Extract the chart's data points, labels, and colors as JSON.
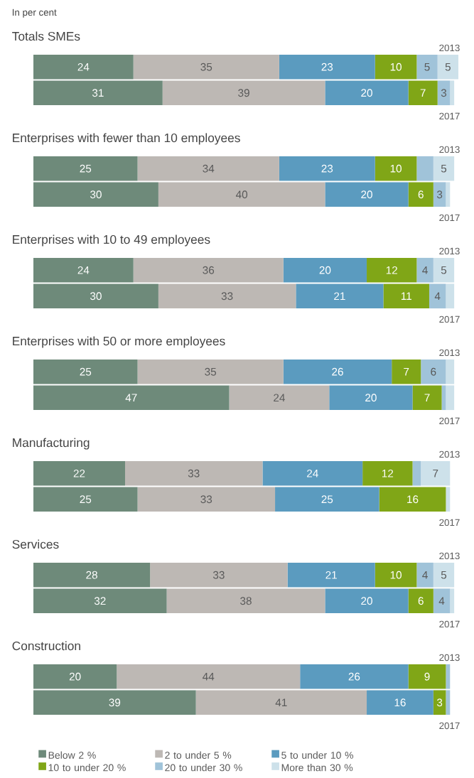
{
  "chart_data": [
    {
      "type": "bar",
      "orientation": "horizontal",
      "stacked": true,
      "subtitle": "In per cent",
      "title": "Totals SMEs",
      "categories": [
        "2013",
        "2017"
      ],
      "series": [
        {
          "color": "#6e8a7a",
          "values": [
            24,
            31
          ],
          "value_labels": [
            "24",
            "31"
          ]
        },
        {
          "color": "#bdb8b4",
          "values": [
            35,
            39
          ],
          "value_labels": [
            "35",
            "39"
          ]
        },
        {
          "color": "#5b9bbf",
          "values": [
            23,
            20
          ],
          "value_labels": [
            "23",
            "20"
          ]
        },
        {
          "color": "#80a617",
          "values": [
            10,
            7
          ],
          "value_labels": [
            "10",
            "7"
          ]
        },
        {
          "color": "#a0c3d9",
          "values": [
            5,
            3
          ],
          "value_labels": [
            "5",
            "3"
          ]
        },
        {
          "color": "#cde1ea",
          "values": [
            5,
            1
          ],
          "value_labels": [
            "5",
            null
          ]
        }
      ]
    },
    {
      "type": "bar",
      "orientation": "horizontal",
      "stacked": true,
      "title": "Enterprises with fewer than 10 employees",
      "categories": [
        "2013",
        "2017"
      ],
      "series": [
        {
          "color": "#6e8a7a",
          "values": [
            25,
            30
          ],
          "value_labels": [
            "25",
            "30"
          ]
        },
        {
          "color": "#bdb8b4",
          "values": [
            34,
            40
          ],
          "value_labels": [
            "34",
            "40"
          ]
        },
        {
          "color": "#5b9bbf",
          "values": [
            23,
            20
          ],
          "value_labels": [
            "23",
            "20"
          ]
        },
        {
          "color": "#80a617",
          "values": [
            10,
            6
          ],
          "value_labels": [
            "10",
            "6"
          ]
        },
        {
          "color": "#a0c3d9",
          "values": [
            4,
            3
          ],
          "value_labels": [
            null,
            "3"
          ]
        },
        {
          "color": "#cde1ea",
          "values": [
            5,
            1
          ],
          "value_labels": [
            "5",
            null
          ]
        }
      ]
    },
    {
      "type": "bar",
      "orientation": "horizontal",
      "stacked": true,
      "title": "Enterprises with 10 to 49 employees",
      "categories": [
        "2013",
        "2017"
      ],
      "series": [
        {
          "color": "#6e8a7a",
          "values": [
            24,
            30
          ],
          "value_labels": [
            "24",
            "30"
          ]
        },
        {
          "color": "#bdb8b4",
          "values": [
            36,
            33
          ],
          "value_labels": [
            "36",
            "33"
          ]
        },
        {
          "color": "#5b9bbf",
          "values": [
            20,
            21
          ],
          "value_labels": [
            "20",
            "21"
          ]
        },
        {
          "color": "#80a617",
          "values": [
            12,
            11
          ],
          "value_labels": [
            "12",
            "11"
          ]
        },
        {
          "color": "#a0c3d9",
          "values": [
            4,
            4
          ],
          "value_labels": [
            "4",
            "4"
          ]
        },
        {
          "color": "#cde1ea",
          "values": [
            5,
            2
          ],
          "value_labels": [
            "5",
            null
          ]
        }
      ]
    },
    {
      "type": "bar",
      "orientation": "horizontal",
      "stacked": true,
      "title": "Enterprises with 50 or more employees",
      "categories": [
        "2013",
        "2017"
      ],
      "series": [
        {
          "color": "#6e8a7a",
          "values": [
            25,
            47
          ],
          "value_labels": [
            "25",
            "47"
          ]
        },
        {
          "color": "#bdb8b4",
          "values": [
            35,
            24
          ],
          "value_labels": [
            "35",
            "24"
          ]
        },
        {
          "color": "#5b9bbf",
          "values": [
            26,
            20
          ],
          "value_labels": [
            "26",
            "20"
          ]
        },
        {
          "color": "#80a617",
          "values": [
            7,
            7
          ],
          "value_labels": [
            "7",
            "7"
          ]
        },
        {
          "color": "#a0c3d9",
          "values": [
            6,
            1
          ],
          "value_labels": [
            "6",
            null
          ]
        },
        {
          "color": "#cde1ea",
          "values": [
            2,
            2
          ],
          "value_labels": [
            null,
            null
          ]
        }
      ]
    },
    {
      "type": "bar",
      "orientation": "horizontal",
      "stacked": true,
      "title": "Manufacturing",
      "categories": [
        "2013",
        "2017"
      ],
      "series": [
        {
          "color": "#6e8a7a",
          "values": [
            22,
            25
          ],
          "value_labels": [
            "22",
            "25"
          ]
        },
        {
          "color": "#bdb8b4",
          "values": [
            33,
            33
          ],
          "value_labels": [
            "33",
            "33"
          ]
        },
        {
          "color": "#5b9bbf",
          "values": [
            24,
            25
          ],
          "value_labels": [
            "24",
            "25"
          ]
        },
        {
          "color": "#80a617",
          "values": [
            12,
            16
          ],
          "value_labels": [
            "12",
            "16"
          ]
        },
        {
          "color": "#a0c3d9",
          "values": [
            2,
            null
          ],
          "value_labels": [
            null,
            null
          ]
        },
        {
          "color": "#cde1ea",
          "values": [
            7,
            1
          ],
          "value_labels": [
            "7",
            null
          ]
        }
      ]
    },
    {
      "type": "bar",
      "orientation": "horizontal",
      "stacked": true,
      "title": "Services",
      "categories": [
        "2013",
        "2017"
      ],
      "series": [
        {
          "color": "#6e8a7a",
          "values": [
            28,
            32
          ],
          "value_labels": [
            "28",
            "32"
          ]
        },
        {
          "color": "#bdb8b4",
          "values": [
            33,
            38
          ],
          "value_labels": [
            "33",
            "38"
          ]
        },
        {
          "color": "#5b9bbf",
          "values": [
            21,
            20
          ],
          "value_labels": [
            "21",
            "20"
          ]
        },
        {
          "color": "#80a617",
          "values": [
            10,
            6
          ],
          "value_labels": [
            "10",
            "6"
          ]
        },
        {
          "color": "#a0c3d9",
          "values": [
            4,
            4
          ],
          "value_labels": [
            "4",
            "4"
          ]
        },
        {
          "color": "#cde1ea",
          "values": [
            5,
            1
          ],
          "value_labels": [
            "5",
            null
          ]
        }
      ]
    },
    {
      "type": "bar",
      "orientation": "horizontal",
      "stacked": true,
      "title": "Construction",
      "categories": [
        "2013",
        "2017"
      ],
      "legend": "bottom",
      "series": [
        {
          "name": "Below 2 %",
          "color": "#6e8a7a",
          "values": [
            20,
            39
          ],
          "value_labels": [
            "20",
            "39"
          ]
        },
        {
          "name": "2 to under 5 %",
          "color": "#bdb8b4",
          "values": [
            44,
            41
          ],
          "value_labels": [
            "44",
            "41"
          ]
        },
        {
          "name": "5 to under 10 %",
          "color": "#5b9bbf",
          "values": [
            26,
            16
          ],
          "value_labels": [
            "26",
            "16"
          ]
        },
        {
          "name": "10 to under 20 %",
          "color": "#80a617",
          "values": [
            9,
            3
          ],
          "value_labels": [
            "9",
            "3"
          ]
        },
        {
          "name": "20 to under 30 %",
          "color": "#a0c3d9",
          "values": [
            1,
            1
          ],
          "value_labels": [
            null,
            null
          ]
        },
        {
          "name": "More than 30 %",
          "color": "#cde1ea",
          "values": [
            null,
            null
          ],
          "value_labels": [
            null,
            null
          ]
        }
      ]
    }
  ]
}
